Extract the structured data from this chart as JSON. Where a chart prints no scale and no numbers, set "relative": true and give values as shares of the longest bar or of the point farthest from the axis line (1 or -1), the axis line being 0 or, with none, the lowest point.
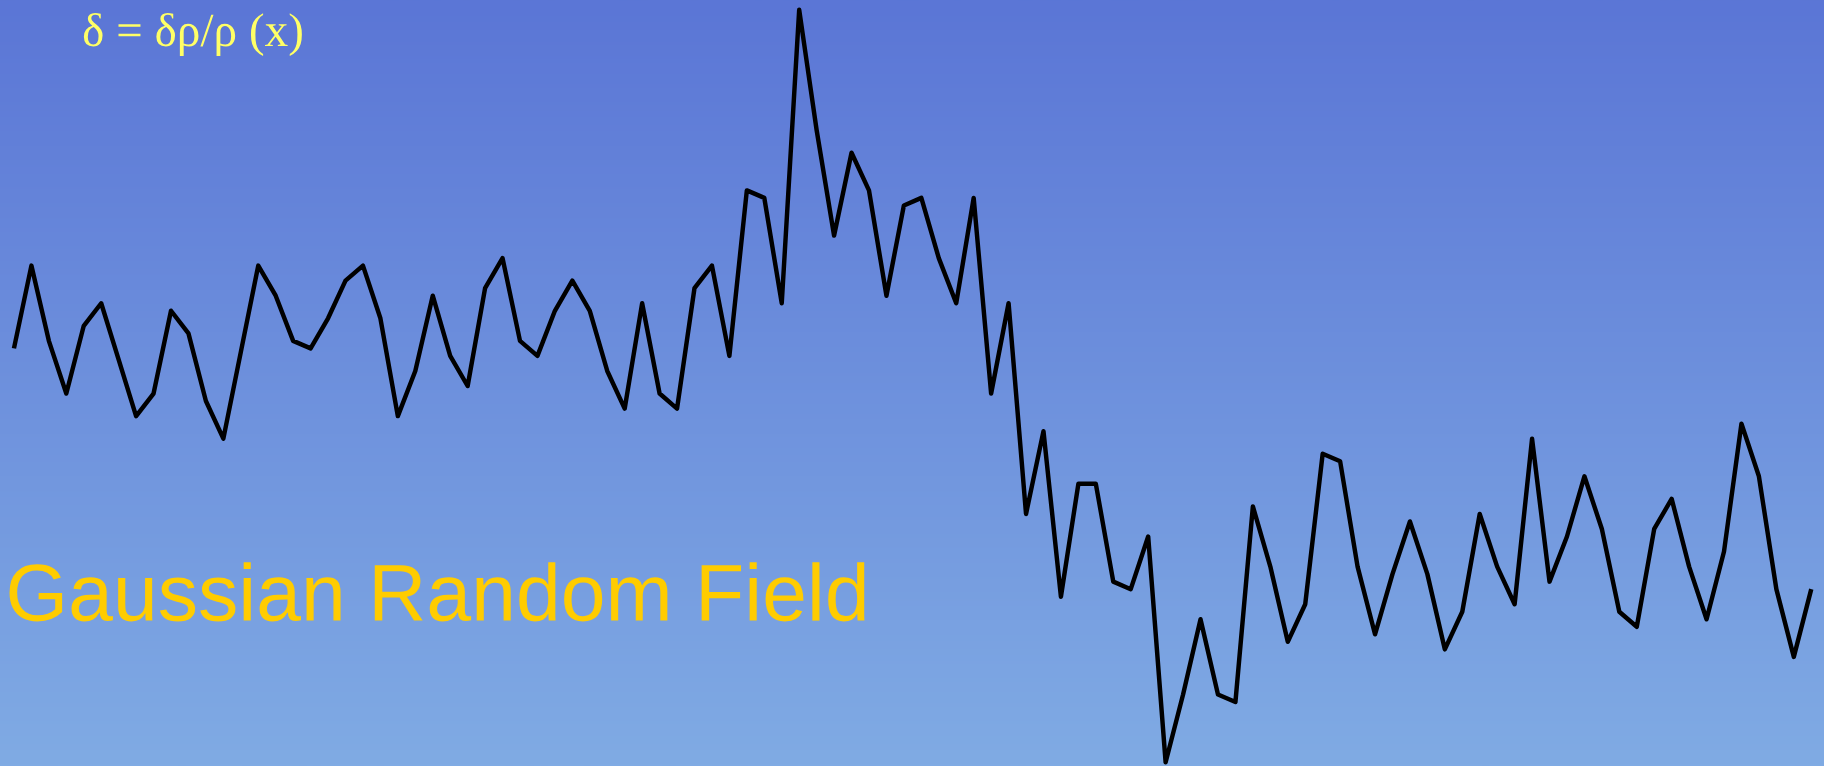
{
  "chart_data": {
    "type": "line",
    "title": "Gaussian Random Field",
    "annotations": [
      "δ = δρ/ρ (x)"
    ],
    "relative": true,
    "tick_labels": false,
    "marker": "none",
    "line_style": "solid",
    "categories": [
      null,
      null,
      null,
      null,
      null,
      null,
      null,
      null,
      null,
      null,
      null,
      null,
      null,
      null,
      null,
      null,
      null,
      null,
      null,
      null,
      null,
      null,
      null,
      null,
      null,
      null,
      null,
      null,
      null,
      null,
      null,
      null,
      null,
      null,
      null,
      null,
      null,
      null,
      null,
      null,
      null,
      null,
      null,
      null,
      null,
      null,
      null,
      null,
      null,
      null,
      null,
      null,
      null,
      null,
      null,
      null,
      null,
      null,
      null,
      null,
      null,
      null,
      null,
      null,
      null,
      null,
      null,
      null,
      null,
      null,
      null,
      null,
      null,
      null,
      null,
      null,
      null,
      null,
      null,
      null,
      null,
      null,
      null,
      null,
      null,
      null,
      null,
      null,
      null,
      null,
      null,
      null,
      null,
      null,
      null,
      null,
      null,
      null,
      null,
      null,
      null,
      null,
      null,
      null
    ],
    "series": [
      {
        "color": "#000000",
        "values": [
          0.55,
          0.66,
          0.56,
          0.49,
          0.58,
          0.61,
          0.535,
          0.46,
          0.49,
          0.6,
          0.57,
          0.48,
          0.43,
          0.545,
          0.66,
          0.62,
          0.56,
          0.55,
          0.59,
          0.64,
          0.66,
          0.59,
          0.46,
          0.52,
          0.62,
          0.54,
          0.5,
          0.63,
          0.67,
          0.56,
          0.54,
          0.6,
          0.64,
          0.6,
          0.52,
          0.47,
          0.61,
          0.49,
          0.47,
          0.63,
          0.66,
          0.54,
          0.76,
          0.75,
          0.61,
          1.0,
          0.84,
          0.7,
          0.81,
          0.76,
          0.62,
          0.74,
          0.75,
          0.67,
          0.61,
          0.75,
          0.49,
          0.61,
          0.33,
          0.44,
          0.22,
          0.37,
          0.37,
          0.24,
          0.23,
          0.3,
          0.0,
          0.09,
          0.19,
          0.09,
          0.08,
          0.34,
          0.26,
          0.16,
          0.21,
          0.41,
          0.4,
          0.26,
          0.17,
          0.25,
          0.32,
          0.25,
          0.15,
          0.2,
          0.33,
          0.26,
          0.21,
          0.43,
          0.24,
          0.3,
          0.38,
          0.31,
          0.2,
          0.18,
          0.31,
          0.35,
          0.26,
          0.19,
          0.28,
          0.45,
          0.38,
          0.23,
          0.14,
          0.23
        ]
      }
    ]
  }
}
